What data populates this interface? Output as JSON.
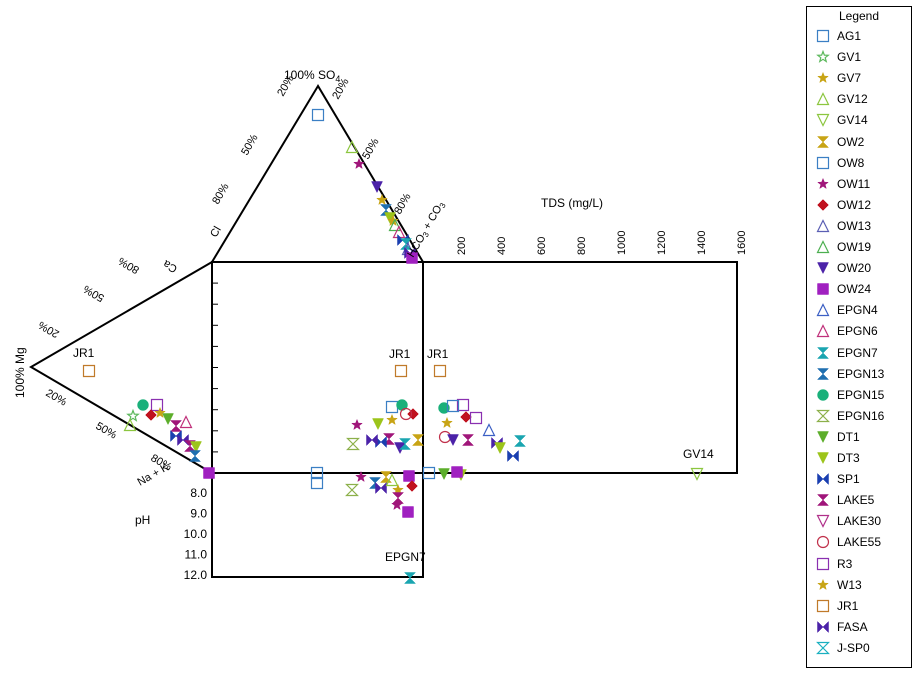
{
  "chart_data": {
    "type": "scatter",
    "legend_title": "Legend",
    "legend_position": "right",
    "labels": {
      "so4_apex": "100% SO",
      "so4_sub": "4",
      "mg_apex": "100% Mg",
      "cl": "Cl",
      "hco3": "HCO",
      "hco3_sub": "3",
      "co3": " + CO",
      "co3_sub": "3",
      "ca": "Ca",
      "nak": "Na + K",
      "tds": "TDS (mg/L)",
      "ph": "pH"
    },
    "percent_ticks": {
      "left_edge": [
        "20%",
        "50%",
        "80%"
      ],
      "right_edge": [
        "20%",
        "50%",
        "80%"
      ],
      "mg_edge": [
        "20%",
        "50%",
        "80%"
      ],
      "ca_edge": [
        "80%",
        "50%",
        "20%"
      ]
    },
    "tds_ticks": [
      "200",
      "400",
      "600",
      "800",
      "1000",
      "1200",
      "1400",
      "1600"
    ],
    "ph_ticks": [
      "8.0",
      "9.0",
      "10.0",
      "11.0",
      "12.0"
    ],
    "annotations": [
      "JR1",
      "JR1",
      "JR1",
      "GV14",
      "EPGN7"
    ],
    "series": [
      {
        "name": "AG1",
        "symbol": "square-open",
        "color": "#3b7fc4"
      },
      {
        "name": "GV1",
        "symbol": "star-open",
        "color": "#5cb85c"
      },
      {
        "name": "GV7",
        "symbol": "star",
        "color": "#c8a415"
      },
      {
        "name": "GV12",
        "symbol": "triangle-open",
        "color": "#8cc63f"
      },
      {
        "name": "GV14",
        "symbol": "triangle-down-open",
        "color": "#8cc63f"
      },
      {
        "name": "OW2",
        "symbol": "hourglass",
        "color": "#c8a415"
      },
      {
        "name": "OW8",
        "symbol": "square-open",
        "color": "#3b7fc4"
      },
      {
        "name": "OW11",
        "symbol": "star",
        "color": "#a0167a"
      },
      {
        "name": "OW12",
        "symbol": "diamond",
        "color": "#c0121f"
      },
      {
        "name": "OW13",
        "symbol": "triangle-open",
        "color": "#5b5fb4"
      },
      {
        "name": "OW19",
        "symbol": "triangle-open",
        "color": "#4caf50"
      },
      {
        "name": "OW20",
        "symbol": "triangle-down",
        "color": "#4b22a8"
      },
      {
        "name": "OW24",
        "symbol": "square",
        "color": "#a020c0"
      },
      {
        "name": "EPGN4",
        "symbol": "triangle-open",
        "color": "#3b5fc4"
      },
      {
        "name": "EPGN6",
        "symbol": "triangle-open",
        "color": "#c0307a"
      },
      {
        "name": "EPGN7",
        "symbol": "hourglass",
        "color": "#1aa5b0"
      },
      {
        "name": "EPGN13",
        "symbol": "hourglass",
        "color": "#1f6fb0"
      },
      {
        "name": "EPGN15",
        "symbol": "circle",
        "color": "#1ab07a"
      },
      {
        "name": "EPGN16",
        "symbol": "hourglass-open",
        "color": "#8cb04a"
      },
      {
        "name": "DT1",
        "symbol": "triangle-down",
        "color": "#5cae2a"
      },
      {
        "name": "DT3",
        "symbol": "triangle-down",
        "color": "#9cc41a"
      },
      {
        "name": "SP1",
        "symbol": "bowtie",
        "color": "#1a3fb0"
      },
      {
        "name": "LAKE5",
        "symbol": "hourglass",
        "color": "#a0167a"
      },
      {
        "name": "LAKE30",
        "symbol": "triangle-down-open",
        "color": "#b0308a"
      },
      {
        "name": "LAKE55",
        "symbol": "circle-open",
        "color": "#c0304a"
      },
      {
        "name": "R3",
        "symbol": "square-open",
        "color": "#8a30b0"
      },
      {
        "name": "W13",
        "symbol": "star",
        "color": "#c8a415"
      },
      {
        "name": "JR1",
        "symbol": "square-open",
        "color": "#c07a2a"
      },
      {
        "name": "FASA",
        "symbol": "bowtie",
        "color": "#4b22a8"
      },
      {
        "name": "J-SP0",
        "symbol": "hourglass-open",
        "color": "#1ab0c0"
      }
    ]
  }
}
